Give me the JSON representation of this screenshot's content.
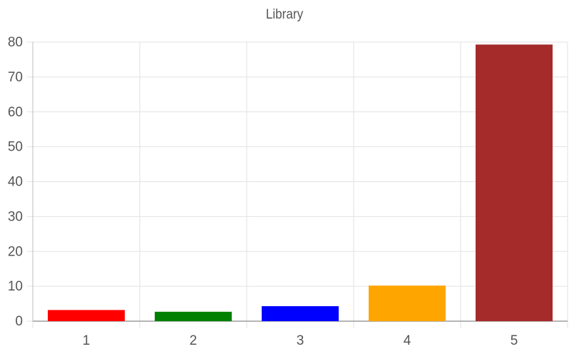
{
  "chart_data": {
    "type": "bar",
    "title": "Library",
    "xlabel": "",
    "ylabel": "",
    "categories": [
      "1",
      "2",
      "3",
      "4",
      "5"
    ],
    "values": [
      3.2,
      2.7,
      4.3,
      10.2,
      79.3
    ],
    "colors": [
      "#ff0000",
      "#008000",
      "#0000ff",
      "#ffa500",
      "#a52a2a"
    ],
    "ylim": [
      0,
      80
    ],
    "yticks": [
      0,
      10,
      20,
      30,
      40,
      50,
      60,
      70,
      80
    ],
    "grid": true,
    "legend": "none"
  }
}
